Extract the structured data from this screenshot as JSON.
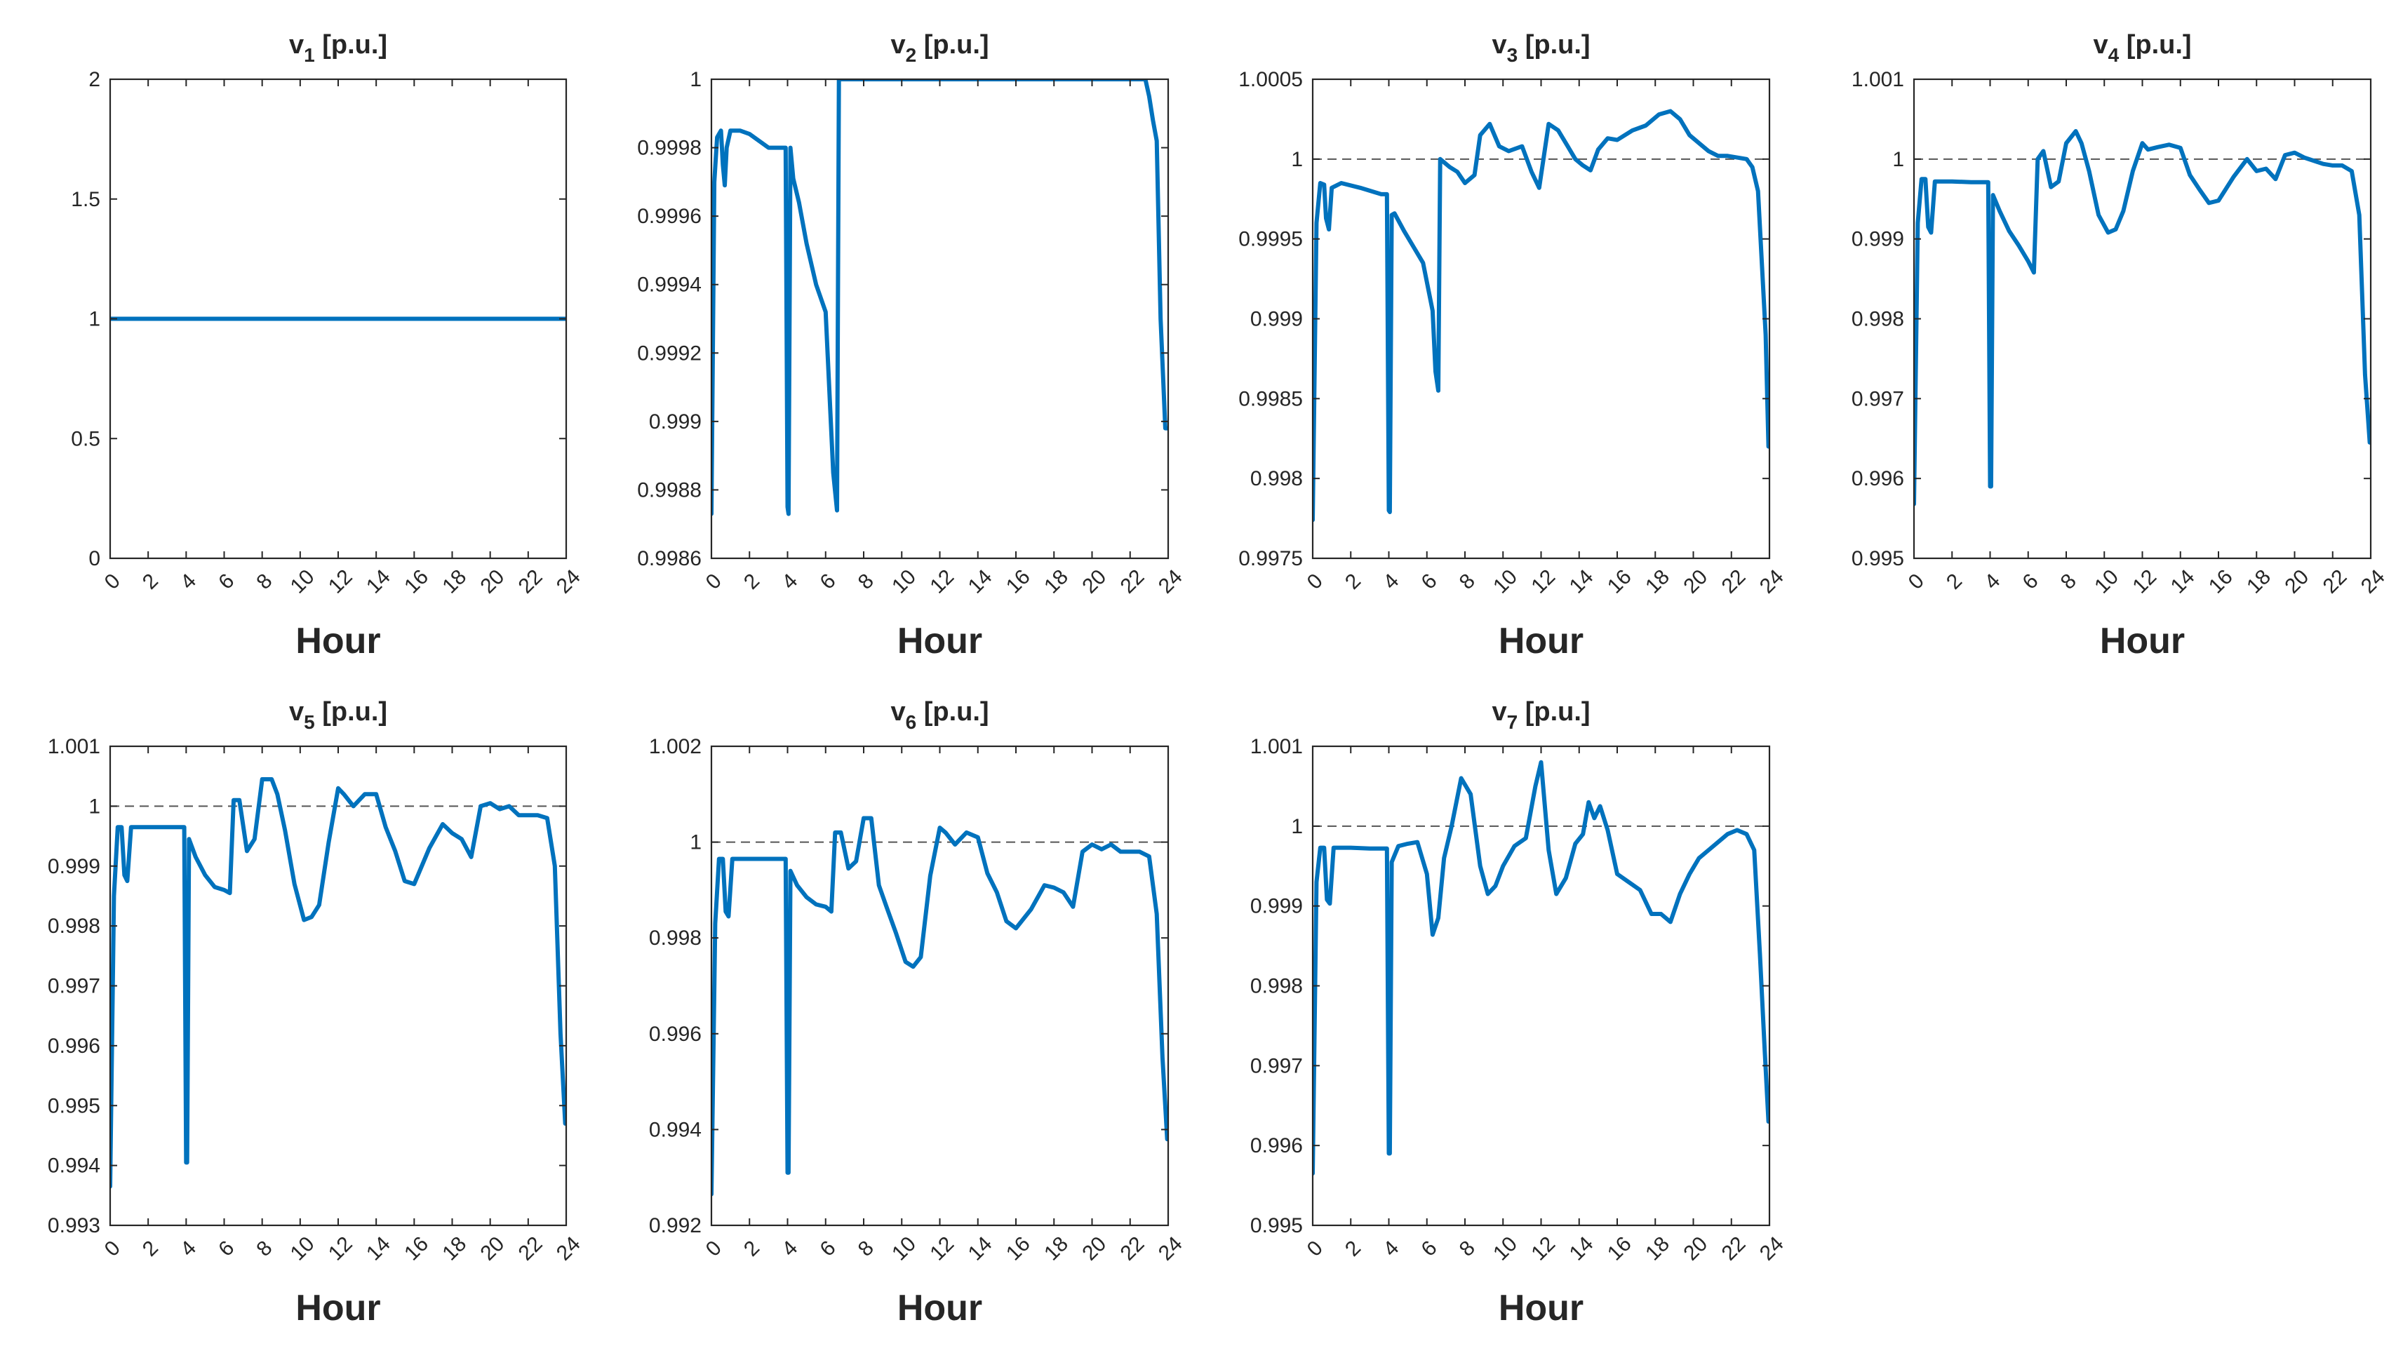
{
  "figure": {
    "background": "#ffffff",
    "line_color": "#0072BD",
    "reference_color": "#555555"
  },
  "chart_data": [
    {
      "type": "line",
      "title_var": "v",
      "title_sub": "1",
      "title_unit": " [p.u.]",
      "xlabel": "Hour",
      "xlim": [
        0,
        24
      ],
      "ylim": [
        0,
        2
      ],
      "xticks": [
        "0",
        "2",
        "4",
        "6",
        "8",
        "10",
        "12",
        "14",
        "16",
        "18",
        "20",
        "22",
        "24"
      ],
      "yticks": [
        "0",
        "0.5",
        "1",
        "1.5",
        "2"
      ],
      "ytick_values": [
        0,
        0.5,
        1,
        1.5,
        2
      ],
      "reference": 1,
      "series": [
        {
          "name": "v1",
          "x": [
            0,
            24
          ],
          "y": [
            1,
            1
          ]
        }
      ]
    },
    {
      "type": "line",
      "title_var": "v",
      "title_sub": "2",
      "title_unit": " [p.u.]",
      "xlabel": "Hour",
      "xlim": [
        0,
        24
      ],
      "ylim": [
        0.9986,
        1
      ],
      "xticks": [
        "0",
        "2",
        "4",
        "6",
        "8",
        "10",
        "12",
        "14",
        "16",
        "18",
        "20",
        "22",
        "24"
      ],
      "yticks": [
        "0.9986",
        "0.9988",
        "0.999",
        "0.9992",
        "0.9994",
        "0.9996",
        "0.9998",
        "1"
      ],
      "ytick_values": [
        0.9986,
        0.9988,
        0.999,
        0.9992,
        0.9994,
        0.9996,
        0.9998,
        1
      ],
      "reference": null,
      "series": [
        {
          "name": "v2",
          "x": [
            0,
            0.15,
            0.3,
            0.5,
            0.6,
            0.7,
            0.8,
            1.0,
            1.5,
            2.0,
            3.0,
            3.9,
            4.0,
            4.05,
            4.15,
            4.3,
            4.6,
            5.0,
            5.5,
            6.0,
            6.4,
            6.6,
            6.7,
            22.5,
            22.8,
            23.0,
            23.2,
            23.4,
            23.6,
            23.85,
            23.95
          ],
          "y": [
            0.99873,
            0.9997,
            0.99983,
            0.99985,
            0.99975,
            0.99969,
            0.9998,
            0.99985,
            0.99985,
            0.99984,
            0.9998,
            0.9998,
            0.99875,
            0.99873,
            0.9998,
            0.99971,
            0.99964,
            0.99952,
            0.9994,
            0.99932,
            0.99885,
            0.99874,
            1.0,
            1.0,
            1.0,
            0.99995,
            0.99988,
            0.99982,
            0.9993,
            0.99898,
            0.99898
          ]
        }
      ]
    },
    {
      "type": "line",
      "title_var": "v",
      "title_sub": "3",
      "title_unit": " [p.u.]",
      "xlabel": "Hour",
      "xlim": [
        0,
        24
      ],
      "ylim": [
        0.9975,
        1.0005
      ],
      "xticks": [
        "0",
        "2",
        "4",
        "6",
        "8",
        "10",
        "12",
        "14",
        "16",
        "18",
        "20",
        "22",
        "24"
      ],
      "yticks": [
        "0.9975",
        "0.998",
        "0.9985",
        "0.999",
        "0.9995",
        "1",
        "1.0005"
      ],
      "ytick_values": [
        0.9975,
        0.998,
        0.9985,
        0.999,
        0.9995,
        1,
        1.0005
      ],
      "reference": 1,
      "series": [
        {
          "name": "v3",
          "x": [
            0,
            0.2,
            0.4,
            0.6,
            0.7,
            0.85,
            1.0,
            1.5,
            2.5,
            3.6,
            3.9,
            4.0,
            4.05,
            4.15,
            4.3,
            4.8,
            5.3,
            5.8,
            6.3,
            6.45,
            6.6,
            6.7,
            7.2,
            7.6,
            8.0,
            8.5,
            8.8,
            9.3,
            9.8,
            10.3,
            11.0,
            11.5,
            11.9,
            12.4,
            12.9,
            13.4,
            13.8,
            14.2,
            14.6,
            15.0,
            15.5,
            16.0,
            16.8,
            17.5,
            18.2,
            18.8,
            19.3,
            19.8,
            20.3,
            20.8,
            21.3,
            21.8,
            22.3,
            22.8,
            23.1,
            23.4,
            23.8,
            23.95
          ],
          "y": [
            0.99774,
            0.9996,
            0.99985,
            0.99984,
            0.99963,
            0.99956,
            0.99982,
            0.99985,
            0.99982,
            0.99978,
            0.99978,
            0.9978,
            0.99779,
            0.99965,
            0.99966,
            0.99955,
            0.99945,
            0.99935,
            0.99905,
            0.99867,
            0.99855,
            1.0,
            0.99995,
            0.99992,
            0.99985,
            0.9999,
            1.00015,
            1.00022,
            1.00008,
            1.00005,
            1.00008,
            0.99992,
            0.99982,
            1.00022,
            1.00018,
            1.00008,
            1.0,
            0.99996,
            0.99993,
            1.00006,
            1.00013,
            1.00012,
            1.00018,
            1.00021,
            1.00028,
            1.0003,
            1.00025,
            1.00015,
            1.0001,
            1.00005,
            1.00002,
            1.00002,
            1.00001,
            1.0,
            0.99995,
            0.9998,
            0.9989,
            0.9982
          ]
        }
      ]
    },
    {
      "type": "line",
      "title_var": "v",
      "title_sub": "4",
      "title_unit": " [p.u.]",
      "xlabel": "Hour",
      "xlim": [
        0,
        24
      ],
      "ylim": [
        0.995,
        1.001
      ],
      "xticks": [
        "0",
        "2",
        "4",
        "6",
        "8",
        "10",
        "12",
        "14",
        "16",
        "18",
        "20",
        "22",
        "24"
      ],
      "yticks": [
        "0.995",
        "0.996",
        "0.997",
        "0.998",
        "0.999",
        "1",
        "1.001"
      ],
      "ytick_values": [
        0.995,
        0.996,
        0.997,
        0.998,
        0.999,
        1,
        1.001
      ],
      "reference": 1,
      "series": [
        {
          "name": "v4",
          "x": [
            0,
            0.2,
            0.4,
            0.6,
            0.75,
            0.9,
            1.1,
            2.0,
            3.0,
            3.9,
            4.0,
            4.05,
            4.15,
            4.5,
            5.0,
            5.5,
            6.0,
            6.3,
            6.5,
            6.8,
            7.2,
            7.6,
            8.0,
            8.5,
            8.8,
            9.2,
            9.7,
            10.2,
            10.6,
            11.0,
            11.5,
            12.0,
            12.3,
            12.8,
            13.4,
            14.0,
            14.5,
            15.0,
            15.5,
            16.0,
            16.8,
            17.5,
            18.0,
            18.5,
            19.0,
            19.5,
            20.0,
            20.5,
            21.0,
            21.5,
            22.0,
            22.5,
            23.0,
            23.4,
            23.7,
            23.95
          ],
          "y": [
            0.99568,
            0.9992,
            0.99975,
            0.99975,
            0.99915,
            0.99908,
            0.99972,
            0.99972,
            0.99971,
            0.99971,
            0.9959,
            0.9959,
            0.99955,
            0.99935,
            0.9991,
            0.99892,
            0.99872,
            0.99858,
            1.0,
            1.0001,
            0.99965,
            0.99972,
            1.0002,
            1.00035,
            1.0002,
            0.99985,
            0.9993,
            0.99908,
            0.99912,
            0.99935,
            0.99985,
            1.0002,
            1.00012,
            1.00015,
            1.00018,
            1.00014,
            0.9998,
            0.99962,
            0.99945,
            0.99948,
            0.99978,
            1.0,
            0.99985,
            0.99988,
            0.99975,
            1.00005,
            1.00008,
            1.00002,
            0.99998,
            0.99994,
            0.99992,
            0.99992,
            0.99985,
            0.9993,
            0.9973,
            0.99645
          ]
        }
      ]
    },
    {
      "type": "line",
      "title_var": "v",
      "title_sub": "5",
      "title_unit": " [p.u.]",
      "xlabel": "Hour",
      "xlim": [
        0,
        24
      ],
      "ylim": [
        0.993,
        1.001
      ],
      "xticks": [
        "0",
        "2",
        "4",
        "6",
        "8",
        "10",
        "12",
        "14",
        "16",
        "18",
        "20",
        "22",
        "24"
      ],
      "yticks": [
        "0.993",
        "0.994",
        "0.995",
        "0.996",
        "0.997",
        "0.998",
        "0.999",
        "1",
        "1.001"
      ],
      "ytick_values": [
        0.993,
        0.994,
        0.995,
        0.996,
        0.997,
        0.998,
        0.999,
        1,
        1.001
      ],
      "reference": 1,
      "series": [
        {
          "name": "v5",
          "x": [
            0,
            0.2,
            0.4,
            0.6,
            0.75,
            0.9,
            1.1,
            2.0,
            3.0,
            3.9,
            4.0,
            4.05,
            4.15,
            4.5,
            5.0,
            5.5,
            6.0,
            6.3,
            6.5,
            6.8,
            7.2,
            7.6,
            8.0,
            8.5,
            8.8,
            9.2,
            9.7,
            10.2,
            10.6,
            11.0,
            11.5,
            12.0,
            12.3,
            12.8,
            13.4,
            14.0,
            14.5,
            15.0,
            15.5,
            16.0,
            16.8,
            17.5,
            18.0,
            18.5,
            19.0,
            19.5,
            20.0,
            20.5,
            21.0,
            21.5,
            22.0,
            22.5,
            23.0,
            23.4,
            23.7,
            23.95
          ],
          "y": [
            0.99365,
            0.9985,
            0.99965,
            0.99965,
            0.99885,
            0.99875,
            0.99965,
            0.99965,
            0.99965,
            0.99965,
            0.99405,
            0.99405,
            0.99945,
            0.99915,
            0.99885,
            0.99865,
            0.9986,
            0.99855,
            1.0001,
            1.0001,
            0.99925,
            0.99945,
            1.00045,
            1.00045,
            1.0002,
            0.9996,
            0.9987,
            0.9981,
            0.99815,
            0.99835,
            0.9994,
            1.0003,
            1.0002,
            1.0,
            1.0002,
            1.0002,
            0.99965,
            0.99925,
            0.99875,
            0.9987,
            0.9993,
            0.9997,
            0.99955,
            0.99945,
            0.99915,
            1.0,
            1.00005,
            0.99995,
            1.0,
            0.99985,
            0.99985,
            0.99985,
            0.9998,
            0.999,
            0.9962,
            0.9947
          ]
        }
      ]
    },
    {
      "type": "line",
      "title_var": "v",
      "title_sub": "6",
      "title_unit": " [p.u.]",
      "xlabel": "Hour",
      "xlim": [
        0,
        24
      ],
      "ylim": [
        0.992,
        1.002
      ],
      "xticks": [
        "0",
        "2",
        "4",
        "6",
        "8",
        "10",
        "12",
        "14",
        "16",
        "18",
        "20",
        "22",
        "24"
      ],
      "yticks": [
        "0.992",
        "0.994",
        "0.996",
        "0.998",
        "1",
        "1.002"
      ],
      "ytick_values": [
        0.992,
        0.994,
        0.996,
        0.998,
        1,
        1.002
      ],
      "reference": 1,
      "series": [
        {
          "name": "v6",
          "x": [
            0,
            0.2,
            0.4,
            0.6,
            0.75,
            0.9,
            1.1,
            2.0,
            3.0,
            3.9,
            4.0,
            4.05,
            4.15,
            4.5,
            5.0,
            5.5,
            6.0,
            6.3,
            6.5,
            6.8,
            7.2,
            7.6,
            8.0,
            8.4,
            8.8,
            9.2,
            9.7,
            10.2,
            10.6,
            11.0,
            11.5,
            12.0,
            12.3,
            12.8,
            13.4,
            14.0,
            14.5,
            15.0,
            15.5,
            16.0,
            16.8,
            17.5,
            18.0,
            18.5,
            19.0,
            19.5,
            20.0,
            20.5,
            21.0,
            21.5,
            22.0,
            22.5,
            23.0,
            23.4,
            23.7,
            23.95
          ],
          "y": [
            0.99265,
            0.9983,
            0.99965,
            0.99965,
            0.99855,
            0.99845,
            0.99965,
            0.99965,
            0.99965,
            0.99965,
            0.9931,
            0.9931,
            0.9994,
            0.9991,
            0.99885,
            0.9987,
            0.99865,
            0.99855,
            1.0002,
            1.0002,
            0.99945,
            0.9996,
            1.0005,
            1.0005,
            0.9991,
            0.99865,
            0.9981,
            0.9975,
            0.9974,
            0.9976,
            0.9993,
            1.0003,
            1.0002,
            0.99995,
            1.0002,
            1.0001,
            0.99935,
            0.99895,
            0.99835,
            0.9982,
            0.9986,
            0.9991,
            0.99905,
            0.99895,
            0.99865,
            0.9998,
            0.99995,
            0.99985,
            0.99995,
            0.9998,
            0.9998,
            0.9998,
            0.9997,
            0.9985,
            0.9955,
            0.9938
          ]
        }
      ]
    },
    {
      "type": "line",
      "title_var": "v",
      "title_sub": "7",
      "title_unit": " [p.u.]",
      "xlabel": "Hour",
      "xlim": [
        0,
        24
      ],
      "ylim": [
        0.995,
        1.001
      ],
      "xticks": [
        "0",
        "2",
        "4",
        "6",
        "8",
        "10",
        "12",
        "14",
        "16",
        "18",
        "20",
        "22",
        "24"
      ],
      "yticks": [
        "0.995",
        "0.996",
        "0.997",
        "0.998",
        "0.999",
        "1",
        "1.001"
      ],
      "ytick_values": [
        0.995,
        0.996,
        0.997,
        0.998,
        0.999,
        1,
        1.001
      ],
      "reference": 1,
      "series": [
        {
          "name": "v7",
          "x": [
            0,
            0.2,
            0.4,
            0.6,
            0.75,
            0.9,
            1.1,
            2.0,
            3.0,
            3.9,
            4.0,
            4.05,
            4.15,
            4.5,
            5.0,
            5.5,
            6.0,
            6.3,
            6.6,
            6.9,
            7.3,
            7.8,
            8.3,
            8.8,
            9.2,
            9.6,
            10.0,
            10.6,
            11.2,
            11.7,
            12.0,
            12.4,
            12.8,
            13.3,
            13.8,
            14.2,
            14.5,
            14.8,
            15.1,
            15.5,
            16.0,
            16.6,
            17.2,
            17.8,
            18.3,
            18.8,
            19.3,
            19.8,
            20.3,
            20.8,
            21.3,
            21.8,
            22.3,
            22.8,
            23.2,
            23.5,
            23.75,
            23.95
          ],
          "y": [
            0.99565,
            0.9993,
            0.99973,
            0.99973,
            0.99908,
            0.99903,
            0.99973,
            0.99973,
            0.99972,
            0.99972,
            0.9959,
            0.9959,
            0.99955,
            0.99975,
            0.99978,
            0.9998,
            0.9994,
            0.99864,
            0.99885,
            0.9996,
            1.0,
            1.0006,
            1.0004,
            0.9995,
            0.99915,
            0.99925,
            0.9995,
            0.99975,
            0.99985,
            1.0005,
            1.0008,
            0.9997,
            0.99915,
            0.99935,
            0.99978,
            0.9999,
            1.0003,
            1.0001,
            1.00025,
            0.99995,
            0.9994,
            0.9993,
            0.9992,
            0.9989,
            0.9989,
            0.9988,
            0.99915,
            0.9994,
            0.9996,
            0.9997,
            0.9998,
            0.9999,
            0.99995,
            0.9999,
            0.9997,
            0.9984,
            0.9972,
            0.9963
          ]
        }
      ]
    }
  ]
}
